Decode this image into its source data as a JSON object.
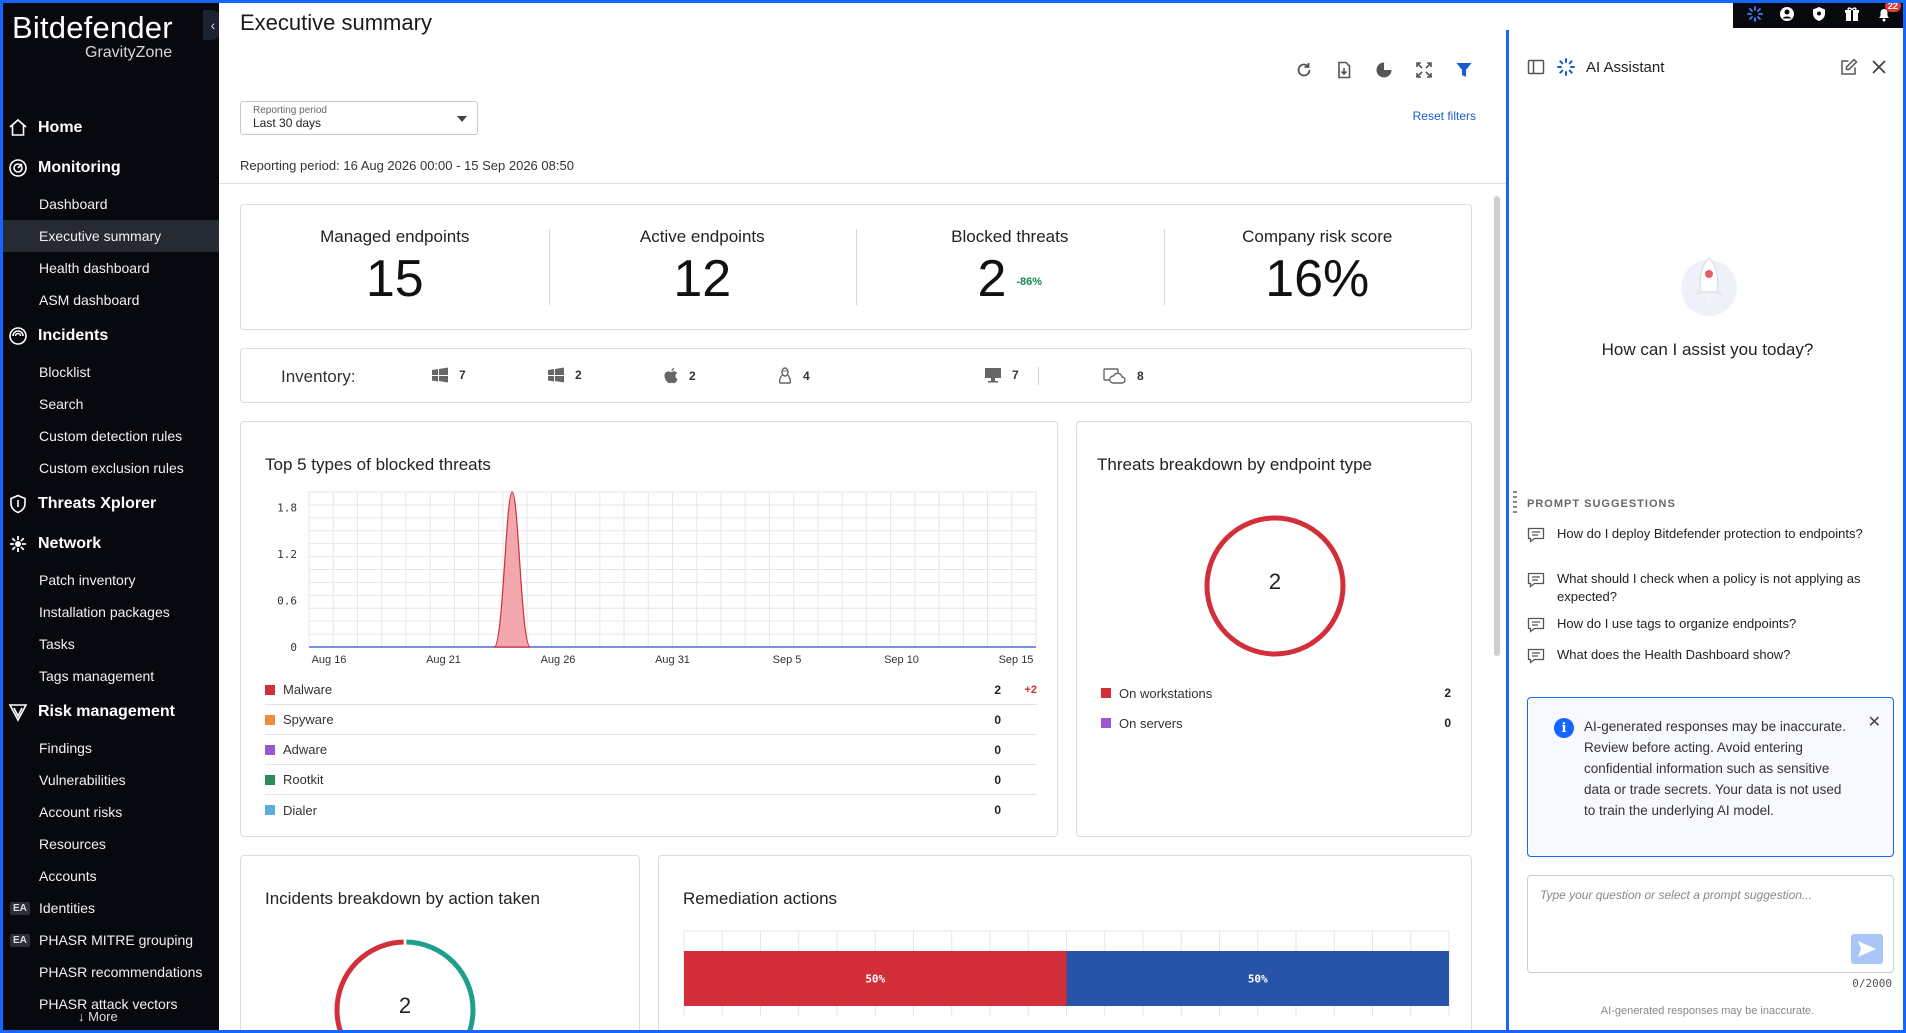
{
  "sidebar": {
    "brand": "Bitdefender",
    "brand_sub": "GravityZone",
    "more_label": "↓ More",
    "sections": [
      {
        "label": "Home",
        "icon": "home-icon",
        "items": []
      },
      {
        "label": "Monitoring",
        "icon": "monitoring-icon",
        "items": [
          {
            "label": "Dashboard"
          },
          {
            "label": "Executive summary",
            "active": true
          },
          {
            "label": "Health dashboard"
          },
          {
            "label": "ASM dashboard"
          }
        ]
      },
      {
        "label": "Incidents",
        "icon": "incidents-icon",
        "items": [
          {
            "label": "Blocklist"
          },
          {
            "label": "Search"
          },
          {
            "label": "Custom detection rules"
          },
          {
            "label": "Custom exclusion rules"
          }
        ]
      },
      {
        "label": "Threats Xplorer",
        "icon": "shield-icon",
        "items": []
      },
      {
        "label": "Network",
        "icon": "network-icon",
        "items": [
          {
            "label": "Patch inventory"
          },
          {
            "label": "Installation packages"
          },
          {
            "label": "Tasks"
          },
          {
            "label": "Tags management"
          }
        ]
      },
      {
        "label": "Risk management",
        "icon": "risk-icon",
        "items": [
          {
            "label": "Findings"
          },
          {
            "label": "Vulnerabilities"
          },
          {
            "label": "Account risks"
          },
          {
            "label": "Resources"
          },
          {
            "label": "Accounts"
          },
          {
            "label": "Identities",
            "badge": "EA"
          },
          {
            "label": "PHASR MITRE grouping",
            "badge": "EA"
          },
          {
            "label": "PHASR recommendations"
          },
          {
            "label": "PHASR attack vectors"
          }
        ]
      }
    ]
  },
  "main": {
    "title": "Executive summary",
    "toolbar": [
      "refresh-icon",
      "export-pdf-icon",
      "pie-chart-icon",
      "fullscreen-icon",
      "filter-icon"
    ],
    "period_select": {
      "label": "Reporting period",
      "value": "Last 30 days"
    },
    "reset_filters": "Reset filters",
    "period_text": "Reporting period: 16 Aug 2026 00:00 - 15 Sep 2026 08:50"
  },
  "kpis": [
    {
      "label": "Managed endpoints",
      "value": "15",
      "delta": ""
    },
    {
      "label": "Active endpoints",
      "value": "12",
      "delta": ""
    },
    {
      "label": "Blocked threats",
      "value": "2",
      "delta": "-86%"
    },
    {
      "label": "Company risk score",
      "value": "16%",
      "delta": ""
    }
  ],
  "inventory": {
    "label": "Inventory:",
    "items": [
      {
        "icon": "windows-workstation-icon",
        "count": "7"
      },
      {
        "icon": "windows-server-icon",
        "count": "2"
      },
      {
        "icon": "apple-icon",
        "count": "2"
      },
      {
        "icon": "linux-icon",
        "count": "4"
      },
      {
        "icon": "monitor-icon",
        "count": "7"
      },
      {
        "icon": "cloud-server-icon",
        "count": "8"
      }
    ]
  },
  "threats_card": {
    "title": "Top 5 types of blocked threats",
    "legend": [
      {
        "name": "Malware",
        "value": "2",
        "delta": "+2",
        "color": "#d32f3a"
      },
      {
        "name": "Spyware",
        "value": "0",
        "delta": "",
        "color": "#f08c3a"
      },
      {
        "name": "Adware",
        "value": "0",
        "delta": "",
        "color": "#9b59d0"
      },
      {
        "name": "Rootkit",
        "value": "0",
        "delta": "",
        "color": "#2e8b57"
      },
      {
        "name": "Dialer",
        "value": "0",
        "delta": "",
        "color": "#5aaee0"
      }
    ]
  },
  "chart_data": [
    {
      "type": "area",
      "title": "Top 5 types of blocked threats",
      "x_ticks": [
        "Aug 16",
        "Aug 21",
        "Aug 26",
        "Aug 31",
        "Sep 5",
        "Sep 10",
        "Sep 15"
      ],
      "y_ticks": [
        "0",
        "0.6",
        "1.2",
        "1.8"
      ],
      "ylim": [
        0,
        2
      ],
      "xlim": [
        "Aug 16",
        "Sep 15"
      ],
      "grid": true,
      "series": [
        {
          "name": "Malware",
          "color": "#d32f3a",
          "peak": {
            "x": "Aug 24",
            "y": 2
          }
        }
      ]
    },
    {
      "type": "pie",
      "title": "Threats breakdown by endpoint type",
      "center_label": "2",
      "slices": [
        {
          "name": "On workstations",
          "value": 2,
          "color": "#d32f3a"
        },
        {
          "name": "On servers",
          "value": 0,
          "color": "#9b59d0"
        }
      ]
    },
    {
      "type": "pie",
      "title": "Incidents breakdown by action taken",
      "center_label": "2",
      "slices": [
        {
          "value": 1,
          "color": "#1f9e89"
        },
        {
          "value": 1,
          "color": "#d32f3a"
        }
      ]
    },
    {
      "type": "bar",
      "title": "Remediation actions",
      "values": [
        50,
        50
      ],
      "labels": [
        "50%",
        "50%"
      ],
      "colors": [
        "#d32f3a",
        "#2753a8"
      ]
    }
  ],
  "ai": {
    "title": "AI Assistant",
    "greeting": "How can I assist you today?",
    "suggestions_title": "PROMPT SUGGESTIONS",
    "suggestions": [
      "How do I deploy Bitdefender protection to endpoints?",
      "What should I check when a policy is not applying as expected?",
      "How do I use tags to organize endpoints?",
      "What does the Health Dashboard show?"
    ],
    "warning": "AI-generated responses may be inaccurate. Review before acting. Avoid entering confidential information such as sensitive data or trade secrets. Your data is not used to train the underlying AI model.",
    "input_placeholder": "Type your question or select a prompt suggestion...",
    "counter": "0/2000",
    "footer": "AI-generated responses may be inaccurate."
  },
  "topbar": {
    "notifications_count": "22",
    "icons": [
      "assistant-spark-icon",
      "user-icon",
      "shield-icon",
      "gift-icon",
      "bell-icon"
    ]
  }
}
